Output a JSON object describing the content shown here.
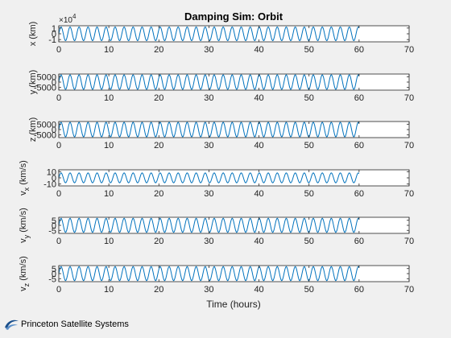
{
  "footer": {
    "company": "Princeton Satellite Systems",
    "logo_icon": "psl-swoosh-logo"
  },
  "chart_data": {
    "type": "line",
    "title": "Damping Sim: Orbit",
    "xlabel": "Time (hours)",
    "xlim": [
      0,
      70
    ],
    "xticks": [
      0,
      10,
      20,
      30,
      40,
      50,
      60,
      70
    ],
    "line_color": "#0072bd",
    "grid": false,
    "samples_per_cycle": 15,
    "panels": [
      {
        "ylabel": "x (km)",
        "ylabel_main": "x",
        "ylabel_sub": "",
        "ylabel_unit": "(km)",
        "ylim": [
          -1.4,
          1.4
        ],
        "yticks": [
          -1,
          0,
          1
        ],
        "ytick_labels": [
          "-1",
          "0",
          "1"
        ],
        "exponent_label": "×10",
        "exponent_power": "4",
        "series": [
          {
            "x_end": 60,
            "amplitude": 1.2,
            "period_hours": 1.8
          }
        ]
      },
      {
        "ylabel": "y (km)",
        "ylabel_main": "y",
        "ylabel_sub": "",
        "ylabel_unit": "(km)",
        "ylim": [
          -7500,
          7500
        ],
        "yticks": [
          -5000,
          0,
          5000
        ],
        "ytick_labels": [
          "-5000",
          "0",
          "5000"
        ],
        "series": [
          {
            "x_end": 60,
            "amplitude": 6800,
            "period_hours": 1.8
          }
        ]
      },
      {
        "ylabel": "z (km)",
        "ylabel_main": "z",
        "ylabel_sub": "",
        "ylabel_unit": "(km)",
        "ylim": [
          -7500,
          7500
        ],
        "yticks": [
          -5000,
          0,
          5000
        ],
        "ytick_labels": [
          "-5000",
          "0",
          "5000"
        ],
        "series": [
          {
            "x_end": 60,
            "amplitude": 6800,
            "period_hours": 1.8
          }
        ]
      },
      {
        "ylabel": "v_x (km/s)",
        "ylabel_main": "v",
        "ylabel_sub": "x",
        "ylabel_unit": "(km/s)",
        "ylim": [
          -13,
          13
        ],
        "yticks": [
          -10,
          0,
          10
        ],
        "ytick_labels": [
          "-10",
          "0",
          "10"
        ],
        "series": [
          {
            "x_end": 60,
            "amplitude": 8,
            "period_hours": 1.8
          }
        ]
      },
      {
        "ylabel": "v_y (km/s)",
        "ylabel_main": "v",
        "ylabel_sub": "y",
        "ylabel_unit": "(km/s)",
        "ylim": [
          -8,
          8
        ],
        "yticks": [
          -5,
          0,
          5
        ],
        "ytick_labels": [
          "-5",
          "0",
          "5"
        ],
        "series": [
          {
            "x_end": 60,
            "amplitude": 7,
            "period_hours": 1.8
          }
        ]
      },
      {
        "ylabel": "v_z (km/s)",
        "ylabel_main": "v",
        "ylabel_sub": "z",
        "ylabel_unit": "(km/s)",
        "ylim": [
          -8,
          8
        ],
        "yticks": [
          -5,
          0,
          5
        ],
        "ytick_labels": [
          "-5",
          "0",
          "5"
        ],
        "series": [
          {
            "x_end": 60,
            "amplitude": 7,
            "period_hours": 1.8
          }
        ]
      }
    ]
  }
}
